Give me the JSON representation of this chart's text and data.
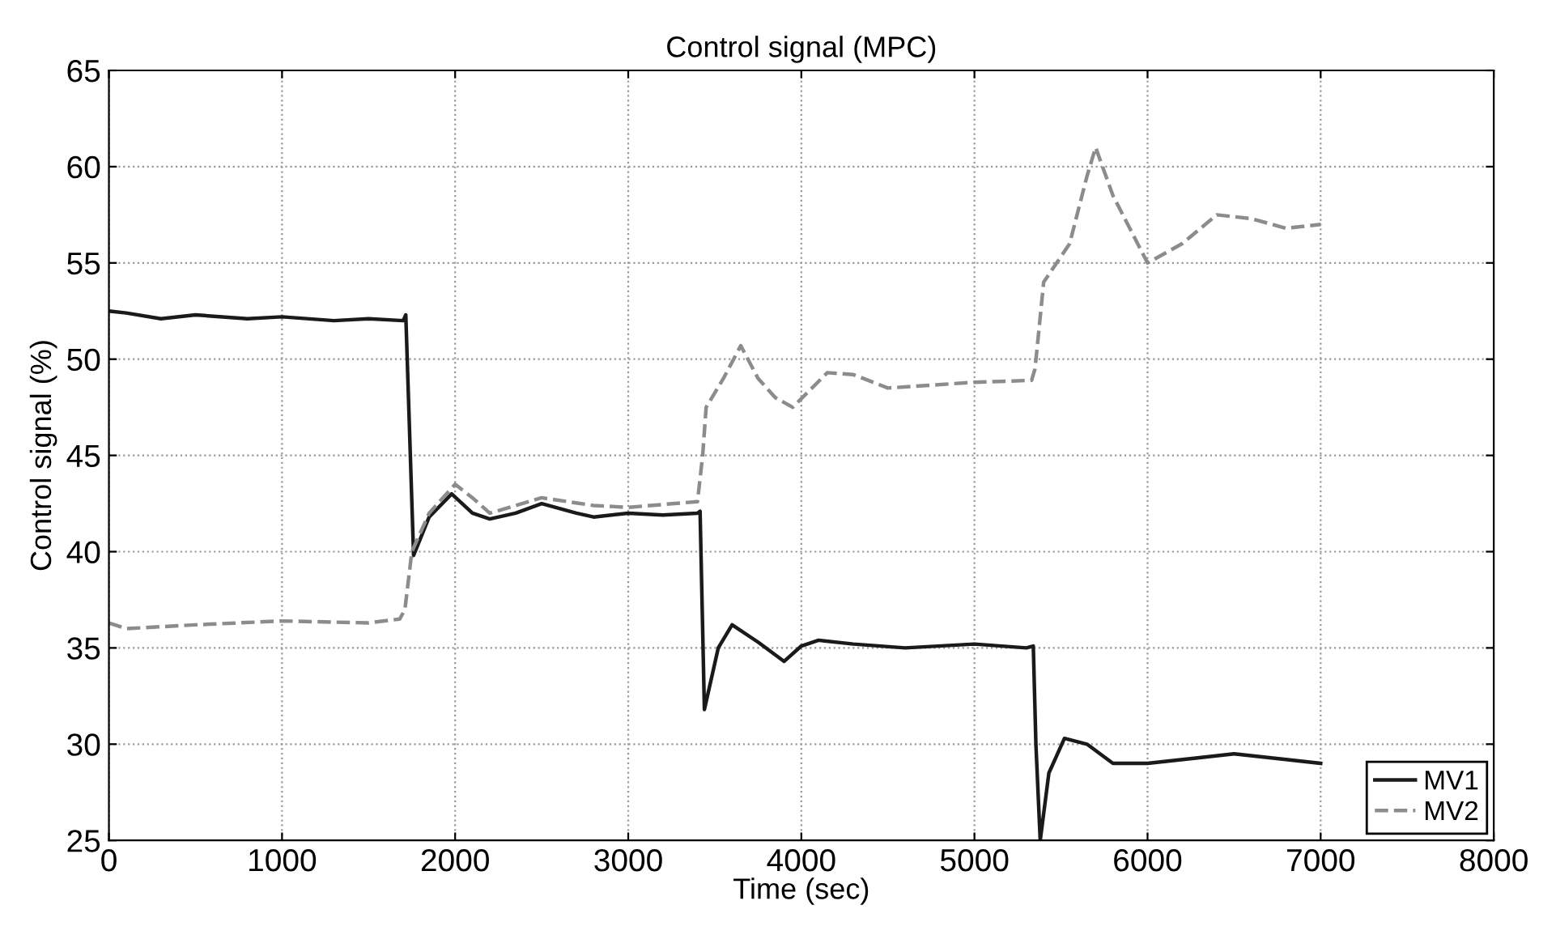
{
  "chart_data": {
    "type": "line",
    "title": "Control signal (MPC)",
    "xlabel": "Time (sec)",
    "ylabel": "Control signal (%)",
    "xlim": [
      0,
      8000
    ],
    "xticks": [
      0,
      1000,
      2000,
      3000,
      4000,
      5000,
      6000,
      7000,
      8000
    ],
    "ylim": [
      25,
      65
    ],
    "yticks": [
      25,
      30,
      35,
      40,
      45,
      50,
      55,
      60,
      65
    ],
    "grid": true,
    "legend": "bottom right",
    "series": [
      {
        "name": "MV1",
        "color": "#1a1a1a",
        "line_style": "solid",
        "x": [
          0,
          100,
          300,
          500,
          800,
          1000,
          1300,
          1500,
          1700,
          1715,
          1760,
          1850,
          1980,
          2100,
          2200,
          2350,
          2500,
          2700,
          2800,
          3000,
          3200,
          3400,
          3415,
          3440,
          3520,
          3600,
          3750,
          3900,
          4000,
          4100,
          4300,
          4600,
          5000,
          5300,
          5340,
          5355,
          5380,
          5430,
          5520,
          5650,
          5800,
          6000,
          6300,
          6500,
          6800,
          7000
        ],
        "values": [
          52.5,
          52.4,
          52.1,
          52.3,
          52.1,
          52.2,
          52.0,
          52.1,
          52.0,
          52.3,
          39.8,
          41.8,
          43.0,
          42.0,
          41.7,
          42.0,
          42.5,
          42.0,
          41.8,
          42.0,
          41.9,
          42.0,
          42.1,
          31.8,
          35.0,
          36.2,
          35.3,
          34.3,
          35.1,
          35.4,
          35.2,
          35.0,
          35.2,
          35.0,
          35.1,
          30.0,
          25.0,
          28.5,
          30.3,
          30.0,
          29.0,
          29.0,
          29.3,
          29.5,
          29.2,
          29.0
        ]
      },
      {
        "name": "MV2",
        "color": "#8c8c8c",
        "line_style": "dashed",
        "x": [
          0,
          100,
          500,
          1000,
          1500,
          1680,
          1710,
          1750,
          1850,
          2000,
          2100,
          2200,
          2500,
          2800,
          3000,
          3400,
          3430,
          3450,
          3550,
          3650,
          3750,
          3850,
          3950,
          4150,
          4300,
          4500,
          5000,
          5330,
          5350,
          5400,
          5550,
          5650,
          5700,
          5800,
          6000,
          6200,
          6400,
          6600,
          6800,
          7000
        ],
        "values": [
          36.3,
          36.0,
          36.2,
          36.4,
          36.3,
          36.5,
          37.0,
          40.0,
          42.0,
          43.5,
          42.8,
          42.0,
          42.8,
          42.4,
          42.3,
          42.6,
          45.0,
          47.5,
          49.0,
          50.7,
          49.0,
          48.0,
          47.5,
          49.3,
          49.2,
          48.5,
          48.8,
          48.9,
          49.5,
          54.0,
          56.0,
          59.5,
          61.0,
          58.5,
          55.0,
          56.0,
          57.5,
          57.3,
          56.8,
          57.0
        ]
      }
    ]
  }
}
